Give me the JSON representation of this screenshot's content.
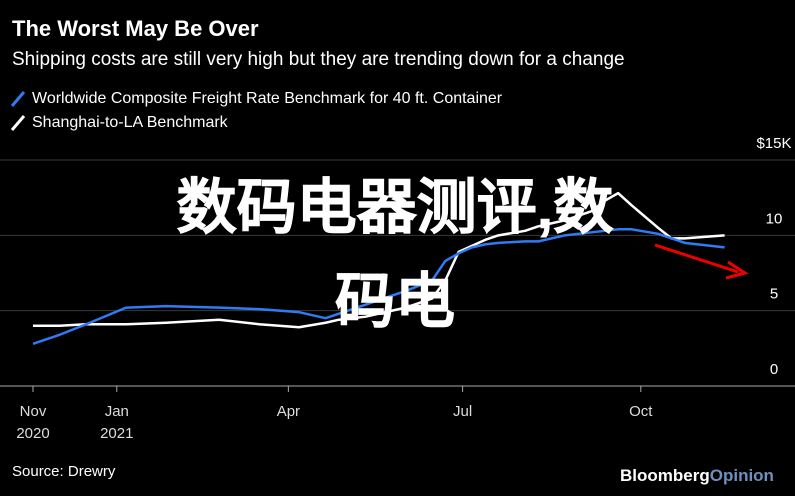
{
  "chart_data": {
    "type": "line",
    "title": "The Worst May Be Over",
    "subtitle": "Shipping costs are still very high but they are trending down for a change",
    "x": [
      0,
      2,
      4,
      7,
      10,
      14,
      17,
      20,
      22,
      23,
      25,
      28,
      30,
      31,
      32,
      33,
      34,
      35,
      37,
      38,
      40,
      42,
      43,
      44,
      45,
      47,
      48,
      49,
      52
    ],
    "series": [
      {
        "name": "Worldwide Composite Freight Rate Benchmark for 40 ft. Container",
        "color": "#2f7bf6",
        "values": [
          2.8,
          3.4,
          4.1,
          5.2,
          5.3,
          5.2,
          5.1,
          4.9,
          4.5,
          4.8,
          5.4,
          6.3,
          7.0,
          8.3,
          8.8,
          9.2,
          9.4,
          9.5,
          9.6,
          9.6,
          10.0,
          10.2,
          10.3,
          10.4,
          10.4,
          10.1,
          9.8,
          9.5,
          9.2
        ]
      },
      {
        "name": "Shanghai-to-LA Benchmark",
        "color": "#ffffff",
        "values": [
          4.0,
          4.0,
          4.1,
          4.1,
          4.2,
          4.4,
          4.1,
          3.9,
          4.2,
          4.4,
          4.6,
          5.2,
          5.8,
          7.0,
          8.9,
          9.3,
          9.7,
          10.0,
          10.3,
          10.6,
          11.0,
          11.6,
          12.3,
          12.8,
          12.0,
          10.5,
          9.8,
          9.8,
          10.0
        ]
      }
    ],
    "xlim": [
      0,
      53
    ],
    "xticks": [
      {
        "value": 0,
        "label": "Nov\n2020"
      },
      {
        "value": 6.3,
        "label": "Jan\n2021"
      },
      {
        "value": 19.2,
        "label": "Apr"
      },
      {
        "value": 32.3,
        "label": "Jul"
      },
      {
        "value": 45.7,
        "label": "Oct"
      }
    ],
    "ylim": [
      0,
      15
    ],
    "yticks": [
      {
        "value": 15,
        "label": "$15K"
      },
      10,
      5,
      0
    ],
    "grid": true,
    "source": "Source: Drewry",
    "logo": [
      "Bloomberg",
      "Opinion"
    ],
    "overlay_lines": [
      "数码电器测评,数",
      "码电"
    ]
  }
}
